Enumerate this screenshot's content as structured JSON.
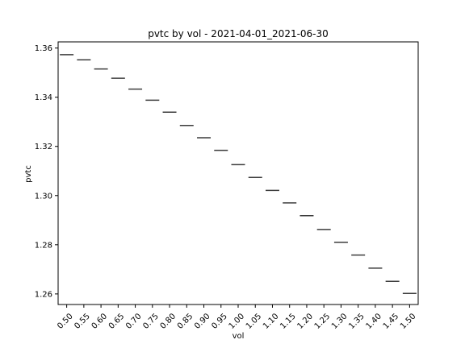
{
  "chart_data": {
    "type": "box",
    "title": "pvtc by vol - 2021-04-01_2021-06-30",
    "xlabel": "vol",
    "ylabel": "pvtc",
    "categories": [
      "0.50",
      "0.55",
      "0.60",
      "0.65",
      "0.70",
      "0.75",
      "0.80",
      "0.85",
      "0.90",
      "0.95",
      "1.00",
      "1.05",
      "1.10",
      "1.15",
      "1.20",
      "1.25",
      "1.30",
      "1.35",
      "1.40",
      "1.45",
      "1.50"
    ],
    "values": [
      1.3573,
      1.3552,
      1.3515,
      1.3477,
      1.3433,
      1.3388,
      1.3339,
      1.3285,
      1.3235,
      1.3184,
      1.3126,
      1.3074,
      1.3021,
      1.297,
      1.2918,
      1.2862,
      1.281,
      1.2758,
      1.2705,
      1.2651,
      1.2602
    ],
    "ylim": [
      1.2557,
      1.3625
    ],
    "yticks": [
      "1.26",
      "1.28",
      "1.30",
      "1.32",
      "1.34",
      "1.36"
    ],
    "colors": {
      "line": "#3c3c3c",
      "axis": "#000000",
      "background": "#ffffff"
    },
    "grid": false,
    "legend": "none"
  }
}
